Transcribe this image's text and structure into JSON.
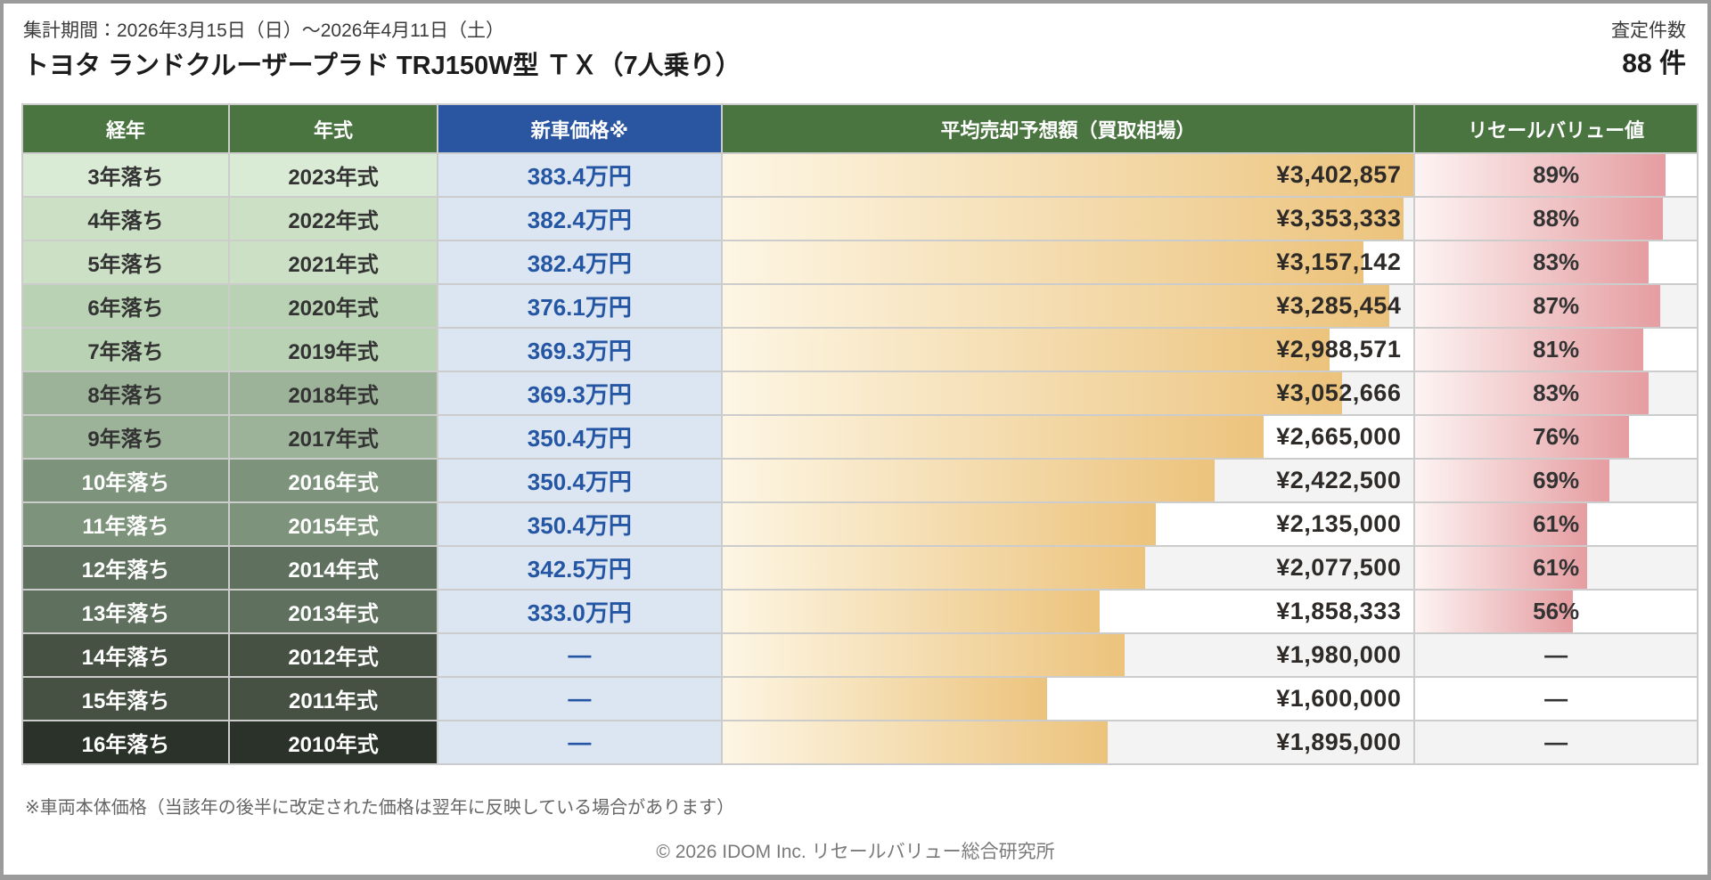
{
  "header": {
    "period": "集計期間：2026年3月15日（日）～2026年4月11日（土）",
    "title": "トヨタ ランドクルーザープラド TRJ150W型 ＴＸ（7人乗り）",
    "assessment_count_label": "査定件数",
    "assessment_count_value": "88 件"
  },
  "table": {
    "columns": [
      "経年",
      "年式",
      "新車価格※",
      "平均売却予想額（買取相場）",
      "リセールバリュー値"
    ],
    "rows": [
      {
        "age": "3年落ち",
        "model_year": "2023年式",
        "new_price": "383.4万円",
        "avg_sale": "¥3,402,857",
        "resale": "89%",
        "bar_pct": 100,
        "resale_bar_pct": 89,
        "row_bg": "#daebd5",
        "text": "dark"
      },
      {
        "age": "4年落ち",
        "model_year": "2022年式",
        "new_price": "382.4万円",
        "avg_sale": "¥3,353,333",
        "resale": "88%",
        "bar_pct": 98.5,
        "resale_bar_pct": 88,
        "row_bg": "#cce0c6",
        "text": "dark"
      },
      {
        "age": "5年落ち",
        "model_year": "2021年式",
        "new_price": "382.4万円",
        "avg_sale": "¥3,157,142",
        "resale": "83%",
        "bar_pct": 92.8,
        "resale_bar_pct": 83,
        "row_bg": "#cce0c6",
        "text": "dark"
      },
      {
        "age": "6年落ち",
        "model_year": "2020年式",
        "new_price": "376.1万円",
        "avg_sale": "¥3,285,454",
        "resale": "87%",
        "bar_pct": 96.5,
        "resale_bar_pct": 87,
        "row_bg": "#b8d2b3",
        "text": "dark"
      },
      {
        "age": "7年落ち",
        "model_year": "2019年式",
        "new_price": "369.3万円",
        "avg_sale": "¥2,988,571",
        "resale": "81%",
        "bar_pct": 87.8,
        "resale_bar_pct": 81,
        "row_bg": "#b8d2b3",
        "text": "dark"
      },
      {
        "age": "8年落ち",
        "model_year": "2018年式",
        "new_price": "369.3万円",
        "avg_sale": "¥3,052,666",
        "resale": "83%",
        "bar_pct": 89.7,
        "resale_bar_pct": 83,
        "row_bg": "#9cb399",
        "text": "dark"
      },
      {
        "age": "9年落ち",
        "model_year": "2017年式",
        "new_price": "350.4万円",
        "avg_sale": "¥2,665,000",
        "resale": "76%",
        "bar_pct": 78.3,
        "resale_bar_pct": 76,
        "row_bg": "#9cb399",
        "text": "dark"
      },
      {
        "age": "10年落ち",
        "model_year": "2016年式",
        "new_price": "350.4万円",
        "avg_sale": "¥2,422,500",
        "resale": "69%",
        "bar_pct": 71.2,
        "resale_bar_pct": 69,
        "row_bg": "#7d937b",
        "text": "light"
      },
      {
        "age": "11年落ち",
        "model_year": "2015年式",
        "new_price": "350.4万円",
        "avg_sale": "¥2,135,000",
        "resale": "61%",
        "bar_pct": 62.7,
        "resale_bar_pct": 61,
        "row_bg": "#7d937b",
        "text": "light"
      },
      {
        "age": "12年落ち",
        "model_year": "2014年式",
        "new_price": "342.5万円",
        "avg_sale": "¥2,077,500",
        "resale": "61%",
        "bar_pct": 61.1,
        "resale_bar_pct": 61,
        "row_bg": "#5f705e",
        "text": "light"
      },
      {
        "age": "13年落ち",
        "model_year": "2013年式",
        "new_price": "333.0万円",
        "avg_sale": "¥1,858,333",
        "resale": "56%",
        "bar_pct": 54.6,
        "resale_bar_pct": 56,
        "row_bg": "#5f705e",
        "text": "light"
      },
      {
        "age": "14年落ち",
        "model_year": "2012年式",
        "new_price": "—",
        "avg_sale": "¥1,980,000",
        "resale": "—",
        "bar_pct": 58.2,
        "resale_bar_pct": 0,
        "row_bg": "#465043",
        "text": "light"
      },
      {
        "age": "15年落ち",
        "model_year": "2011年式",
        "new_price": "—",
        "avg_sale": "¥1,600,000",
        "resale": "—",
        "bar_pct": 47.0,
        "resale_bar_pct": 0,
        "row_bg": "#465043",
        "text": "light"
      },
      {
        "age": "16年落ち",
        "model_year": "2010年式",
        "new_price": "—",
        "avg_sale": "¥1,895,000",
        "resale": "—",
        "bar_pct": 55.7,
        "resale_bar_pct": 0,
        "row_bg": "#2b322a",
        "text": "light"
      }
    ]
  },
  "footer": {
    "note": "※車両本体価格（当該年の後半に改定された価格は翌年に反映している場合があります）",
    "copyright": "© 2026 IDOM Inc. リセールバリュー総合研究所"
  },
  "colors": {
    "header_green": "#4a7440",
    "header_blue": "#2a55a0",
    "price_col_bg": "#dce6f2",
    "price_text": "#2456a4",
    "bar_gradient_start": "#fdf6e4",
    "bar_gradient_end": "#ecc37c",
    "resale_gradient_start": "#fdf4f3",
    "resale_gradient_end": "#e59da1",
    "row_alt_white": "#ffffff",
    "row_alt_gray": "#f3f3f3",
    "grid_line": "#cccccc",
    "frame_gray": "#9b9b9b"
  },
  "chart_data": {
    "type": "table",
    "title": "トヨタ ランドクルーザープラド TRJ150W型 ＴＸ（7人乗り） リセールバリュー表",
    "columns": [
      "経年",
      "年式",
      "新車価格※",
      "平均売却予想額（買取相場）",
      "リセールバリュー値"
    ],
    "categories": [
      "3年落ち",
      "4年落ち",
      "5年落ち",
      "6年落ち",
      "7年落ち",
      "8年落ち",
      "9年落ち",
      "10年落ち",
      "11年落ち",
      "12年落ち",
      "13年落ち",
      "14年落ち",
      "15年落ち",
      "16年落ち"
    ],
    "model_years": [
      2023,
      2022,
      2021,
      2020,
      2019,
      2018,
      2017,
      2016,
      2015,
      2014,
      2013,
      2012,
      2011,
      2010
    ],
    "series": [
      {
        "name": "新車価格（万円）",
        "values": [
          383.4,
          382.4,
          382.4,
          376.1,
          369.3,
          369.3,
          350.4,
          350.4,
          350.4,
          342.5,
          333.0,
          null,
          null,
          null
        ]
      },
      {
        "name": "平均売却予想額（円）",
        "values": [
          3402857,
          3353333,
          3157142,
          3285454,
          2988571,
          3052666,
          2665000,
          2422500,
          2135000,
          2077500,
          1858333,
          1980000,
          1600000,
          1895000
        ]
      },
      {
        "name": "リセールバリュー値（%）",
        "values": [
          89,
          88,
          83,
          87,
          81,
          83,
          76,
          69,
          61,
          61,
          56,
          null,
          null,
          null
        ]
      }
    ],
    "bar_scale_max_yen": 3402857,
    "legend_position": "none",
    "grid": true
  }
}
